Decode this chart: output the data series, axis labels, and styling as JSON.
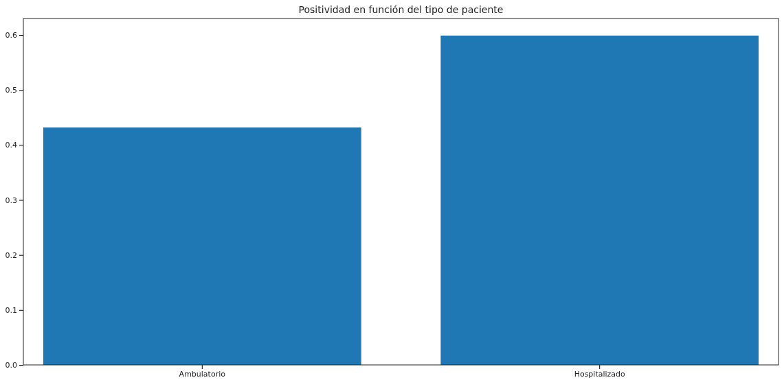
{
  "chart_data": {
    "type": "bar",
    "title": "Positividad en función del tipo de paciente",
    "categories": [
      "Ambulatorio",
      "Hospitalizado"
    ],
    "values": [
      0.432,
      0.599
    ],
    "color": "#1f77b4",
    "ylim": [
      0,
      0.63
    ],
    "yticks": [
      {
        "value": 0,
        "label": "0.0"
      },
      0.1,
      0.2,
      0.3,
      0.4,
      0.5,
      0.6
    ],
    "grid": false,
    "legend": false
  }
}
